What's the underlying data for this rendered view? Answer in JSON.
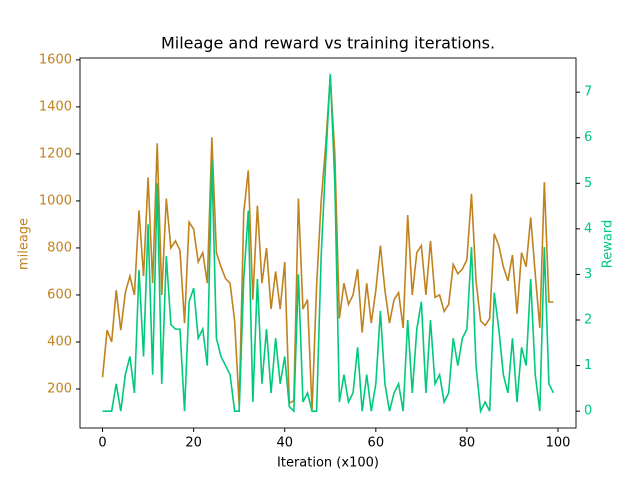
{
  "chart_data": {
    "type": "line",
    "title": "Mileage and reward vs training iterations.",
    "xlabel": "Iteration (x100)",
    "ylabel": "mileage",
    "y2label": "Reward",
    "x": [
      0,
      1,
      2,
      3,
      4,
      5,
      6,
      7,
      8,
      9,
      10,
      11,
      12,
      13,
      14,
      15,
      16,
      17,
      18,
      19,
      20,
      21,
      22,
      23,
      24,
      25,
      26,
      27,
      28,
      29,
      30,
      31,
      32,
      33,
      34,
      35,
      36,
      37,
      38,
      39,
      40,
      41,
      42,
      43,
      44,
      45,
      46,
      47,
      48,
      49,
      50,
      51,
      52,
      53,
      54,
      55,
      56,
      57,
      58,
      59,
      60,
      61,
      62,
      63,
      64,
      65,
      66,
      67,
      68,
      69,
      70,
      71,
      72,
      73,
      74,
      75,
      76,
      77,
      78,
      79,
      80,
      81,
      82,
      83,
      84,
      85,
      86,
      87,
      88,
      89,
      90,
      91,
      92,
      93,
      94,
      95,
      96,
      97,
      98,
      99
    ],
    "series": [
      {
        "name": "mileage",
        "color": "#c0821e",
        "axis": "y",
        "values": [
          250,
          450,
          400,
          620,
          450,
          610,
          680,
          600,
          960,
          680,
          1100,
          650,
          1245,
          600,
          1010,
          800,
          830,
          790,
          480,
          910,
          880,
          740,
          780,
          650,
          1270,
          780,
          720,
          670,
          650,
          490,
          130,
          950,
          1130,
          580,
          980,
          650,
          800,
          540,
          700,
          540,
          740,
          140,
          150,
          1010,
          540,
          580,
          110,
          640,
          1000,
          1240,
          1530,
          1200,
          500,
          650,
          560,
          600,
          710,
          440,
          650,
          480,
          620,
          810,
          620,
          480,
          580,
          610,
          460,
          940,
          600,
          780,
          810,
          600,
          830,
          590,
          600,
          530,
          560,
          730,
          690,
          710,
          750,
          1030,
          660,
          490,
          470,
          500,
          860,
          810,
          720,
          660,
          770,
          520,
          780,
          720,
          930,
          690,
          460,
          1080,
          570,
          570
        ]
      },
      {
        "name": "Reward",
        "color": "#00c97b",
        "axis": "y2",
        "values": [
          0,
          0,
          0,
          0.6,
          0,
          0.8,
          1.2,
          0.4,
          3.1,
          1.2,
          4.1,
          0.8,
          5.0,
          0.6,
          3.4,
          1.9,
          1.8,
          1.8,
          0,
          2.4,
          2.7,
          1.6,
          1.8,
          1.0,
          5.5,
          1.6,
          1.2,
          1.0,
          0.8,
          0,
          0,
          2.9,
          4.4,
          0.2,
          2.9,
          0.6,
          1.8,
          0.4,
          1.6,
          0.6,
          1.2,
          0.1,
          0,
          3.0,
          0.2,
          0.4,
          0,
          0,
          3.4,
          5.5,
          7.4,
          5.0,
          0.2,
          0.8,
          0.2,
          0.4,
          1.4,
          0,
          0.8,
          0,
          0.6,
          2.2,
          0.6,
          0,
          0.4,
          0.6,
          0,
          2.0,
          0.4,
          1.8,
          2.4,
          0.4,
          2.0,
          0.6,
          0.8,
          0.2,
          0.4,
          1.6,
          1.0,
          1.6,
          1.8,
          3.6,
          1.0,
          0,
          0.2,
          0,
          2.6,
          1.8,
          0.8,
          0.4,
          1.6,
          0.2,
          1.4,
          1.0,
          2.9,
          0.8,
          0,
          3.6,
          0.6,
          0.4
        ]
      }
    ],
    "xlim": [
      -4.95,
      103.95
    ],
    "xticks": [
      0,
      20,
      40,
      60,
      80,
      100
    ],
    "ylim": [
      34,
      1608
    ],
    "yticks": [
      200,
      400,
      600,
      800,
      1000,
      1200,
      1400,
      1600
    ],
    "y2lim": [
      -0.37,
      7.75
    ],
    "y2ticks": [
      0,
      1,
      2,
      3,
      4,
      5,
      6,
      7
    ]
  }
}
